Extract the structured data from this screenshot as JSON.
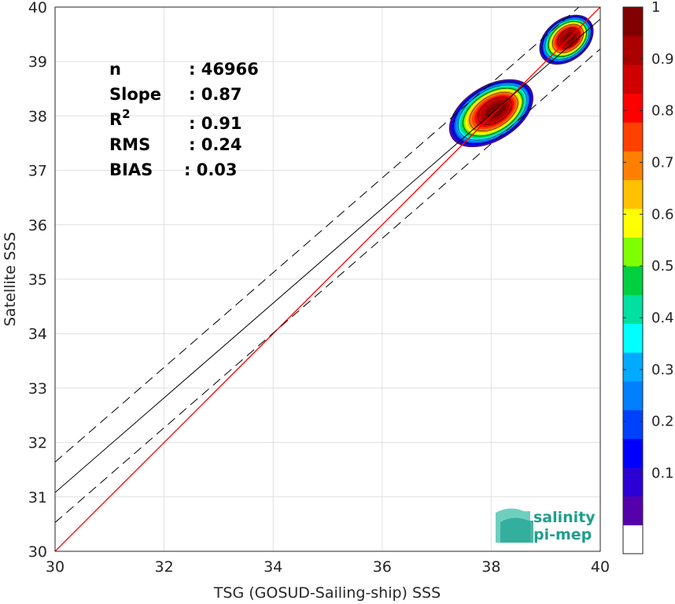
{
  "chart_data": {
    "type": "density-scatter",
    "xlabel": "TSG (GOSUD-Sailing-ship) SSS",
    "ylabel": "Satellite SSS",
    "xlim": [
      30,
      40
    ],
    "ylim": [
      30,
      40
    ],
    "xticks": [
      "30",
      "32",
      "34",
      "36",
      "38",
      "40"
    ],
    "yticks": [
      "30",
      "31",
      "32",
      "33",
      "34",
      "35",
      "36",
      "37",
      "38",
      "39",
      "40"
    ],
    "grid": true,
    "stats": [
      {
        "label": "n",
        "sep": ": ",
        "value": "46966"
      },
      {
        "label": "Slope",
        "sep": ": ",
        "value": "0.87"
      },
      {
        "label": "R",
        "sup": "2",
        "sep": ": ",
        "value": "0.91"
      },
      {
        "label": "RMS",
        "sep": ": ",
        "value": "0.24"
      },
      {
        "label": "BIAS",
        "sep": ": ",
        "value": "0.03"
      }
    ],
    "lines": {
      "one_to_one": {
        "color": "#ff0000",
        "from": [
          30,
          30
        ],
        "to": [
          40,
          40
        ]
      },
      "regression": {
        "color": "#000000",
        "intercept": 31.08,
        "slope": 0.87
      },
      "regression_band": {
        "color": "#000000",
        "style": "dashed",
        "offsets": [
          0.56,
          -0.55
        ]
      }
    },
    "clusters": [
      {
        "cx": 38.0,
        "cy": 38.05,
        "rx": 0.85,
        "ry": 0.5,
        "angle": 32,
        "peak": 1.0
      },
      {
        "cx": 39.38,
        "cy": 39.4,
        "rx": 0.55,
        "ry": 0.38,
        "angle": 38,
        "peak": 1.0
      }
    ],
    "colorbar": {
      "ticks": [
        "0.1",
        "0.2",
        "0.3",
        "0.4",
        "0.5",
        "0.6",
        "0.7",
        "0.8",
        "0.9",
        "1"
      ],
      "range": [
        0,
        1
      ],
      "colors": [
        "#ffffff",
        "#5500aa",
        "#2a00d5",
        "#0000ff",
        "#0040ff",
        "#0080ff",
        "#00aaff",
        "#00ffff",
        "#00e0a0",
        "#00d040",
        "#80ff00",
        "#ffff00",
        "#ffc000",
        "#ff8000",
        "#ff4000",
        "#ff0000",
        "#d00000",
        "#aa0000",
        "#800000"
      ]
    },
    "logo": {
      "line1": "salinity",
      "line2": "pi-mep"
    }
  }
}
